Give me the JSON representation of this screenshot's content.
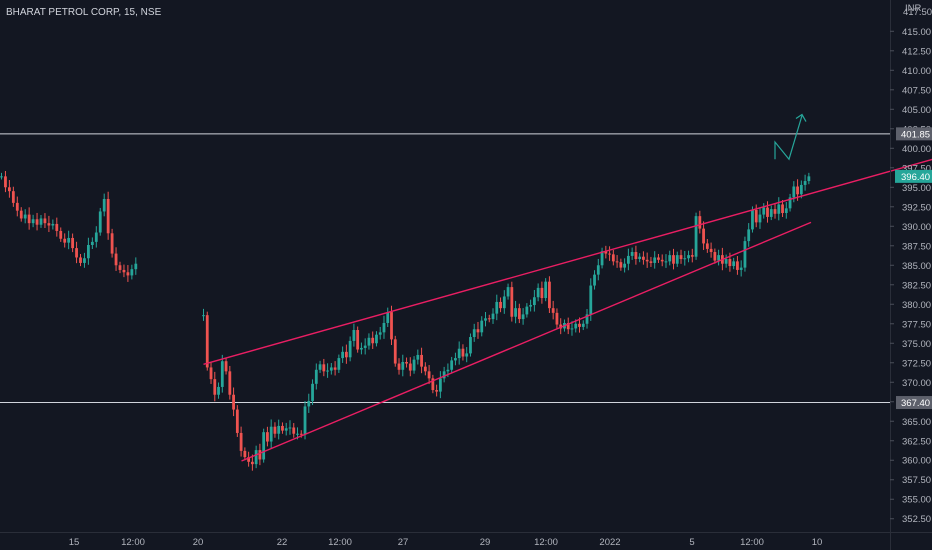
{
  "header": {
    "symbol_title": "BHARAT PETROL CORP, 15, NSE",
    "currency": "INR"
  },
  "colors": {
    "background": "#131722",
    "up": "#26a69a",
    "down": "#ef5350",
    "channel": "#e91e63",
    "hline": "#d1d4dc",
    "arrow": "#26a69a",
    "last_price_bg": "#26a69a"
  },
  "chart_data": {
    "type": "candlestick",
    "title": "BHARAT PETROL CORP, 15, NSE",
    "ylim": [
      350.8,
      418.5
    ],
    "y_ticks": [
      "415.00",
      "412.50",
      "410.00",
      "407.50",
      "405.00",
      "402.50",
      "400.00",
      "397.50",
      "395.00",
      "392.50",
      "390.00",
      "387.50",
      "385.00",
      "382.50",
      "380.00",
      "377.50",
      "375.00",
      "372.50",
      "370.00",
      "367.50",
      "365.00",
      "362.50",
      "360.00",
      "357.50",
      "355.00",
      "352.50"
    ],
    "y_top_partial": "417.50",
    "x_ticks": [
      "15",
      "12:00",
      "20",
      "22",
      "12:00",
      "27",
      "29",
      "12:00",
      "2022",
      "5",
      "12:00",
      "10"
    ],
    "horizontal_lines": [
      {
        "price": 401.85,
        "label": "401.85"
      },
      {
        "price": 367.4,
        "label": "367.40"
      }
    ],
    "last_price": {
      "price": 396.4,
      "label": "396.40"
    },
    "channel": {
      "upper_line": {
        "start_bar": 0,
        "start_price": 372.3,
        "end_bar": 194,
        "end_price": 398.6
      },
      "lower_line": {
        "start_bar": 0,
        "start_price": 359.9,
        "end_bar": 194,
        "end_price": 386.3
      },
      "extended_lower_end_price": 390.5
    },
    "projection": {
      "zigzag_prices": [
        398.6,
        400.8,
        398.6,
        404.2
      ]
    },
    "segments": [
      {
        "name": "pre-gap",
        "points": [
          [
            396.4,
            0
          ],
          [
            395,
            0.2
          ],
          [
            394.5,
            -0.1
          ],
          [
            393,
            0.3
          ],
          [
            392,
            -0.2
          ],
          [
            391,
            0.1
          ],
          [
            391.5,
            0.4
          ],
          [
            390.4,
            -0.3
          ],
          [
            390.9,
            0.2
          ],
          [
            390.2,
            -0.1
          ],
          [
            391,
            0.5
          ],
          [
            390.4,
            0
          ],
          [
            390.1,
            -0.2
          ],
          [
            390.3,
            0.1
          ],
          [
            389.4,
            -0.4
          ],
          [
            388.4,
            -0.3
          ],
          [
            387.9,
            0.2
          ],
          [
            388.5,
            0.4
          ],
          [
            387.2,
            -0.1
          ],
          [
            386,
            -0.3
          ],
          [
            385.3,
            0.2
          ],
          [
            385.9,
            0.3
          ],
          [
            387.6,
            0.5
          ],
          [
            388,
            -0.2
          ],
          [
            389.2,
            0.6
          ],
          [
            391.9,
            0.8
          ],
          [
            393.5,
            0.3
          ],
          [
            389.1,
            -1
          ],
          [
            386.5,
            -0.4
          ],
          [
            385,
            0.2
          ],
          [
            384.4,
            -0.3
          ],
          [
            384.1,
            0.1
          ],
          [
            383.7,
            -0.2
          ],
          [
            384.5,
            0.4
          ],
          [
            385.2,
            0.1
          ]
        ]
      },
      {
        "name": "post-gap",
        "points": [
          [
            378.6,
            0
          ],
          [
            371.9,
            -1.5
          ],
          [
            370.4,
            0.3
          ],
          [
            368.4,
            -0.8
          ],
          [
            369.4,
            0.6
          ],
          [
            372.7,
            0.9
          ],
          [
            371.4,
            -0.3
          ],
          [
            368.4,
            -0.7
          ],
          [
            366.5,
            -0.5
          ],
          [
            363.5,
            -0.6
          ],
          [
            361.2,
            -0.4
          ],
          [
            360.4,
            0.3
          ],
          [
            359.8,
            -0.2
          ],
          [
            359.5,
            0.1
          ],
          [
            361.3,
            0.5
          ],
          [
            360.1,
            -0.3
          ],
          [
            363.6,
            0.8
          ],
          [
            362.4,
            -0.4
          ],
          [
            364.3,
            0.6
          ],
          [
            363.4,
            0.2
          ],
          [
            364.4,
            0.3
          ],
          [
            363.8,
            -0.2
          ],
          [
            364.1,
            0.4
          ],
          [
            364.2,
            0.1
          ],
          [
            363.4,
            -0.3
          ],
          [
            363.4,
            0.3
          ],
          [
            363.3,
            0.1
          ],
          [
            366.9,
            0.6
          ],
          [
            367.6,
            0.4
          ],
          [
            369.8,
            0.5
          ],
          [
            371.6,
            0.4
          ],
          [
            372.3,
            0.2
          ],
          [
            371.4,
            -0.3
          ],
          [
            371.5,
            0.3
          ],
          [
            371.9,
            0.2
          ],
          [
            371.6,
            0.1
          ],
          [
            373.1,
            0.4
          ],
          [
            373.9,
            0.3
          ],
          [
            373.2,
            -0.2
          ],
          [
            375.3,
            0.5
          ],
          [
            376.7,
            0.4
          ],
          [
            374.2,
            -0.5
          ],
          [
            374.4,
            0.2
          ],
          [
            374.7,
            0.3
          ],
          [
            375.7,
            0.4
          ],
          [
            375,
            -0.2
          ],
          [
            376.1,
            0.3
          ],
          [
            376.4,
            0.2
          ],
          [
            377.6,
            0.4
          ],
          [
            379,
            0.5
          ],
          [
            375.5,
            -0.8
          ],
          [
            372.4,
            -0.5
          ],
          [
            371.6,
            -0.3
          ],
          [
            372.6,
            0.4
          ],
          [
            372.4,
            -0.2
          ],
          [
            371.5,
            0.3
          ],
          [
            372.9,
            0.4
          ],
          [
            373.5,
            0.3
          ],
          [
            372,
            -0.4
          ],
          [
            371.4,
            0.2
          ],
          [
            370.5,
            -0.3
          ],
          [
            369,
            -0.5
          ],
          [
            368.8,
            0.4
          ],
          [
            370.5,
            0.5
          ],
          [
            371.4,
            0.3
          ],
          [
            371.6,
            0.2
          ],
          [
            372.8,
            0.4
          ],
          [
            373.1,
            0.3
          ],
          [
            374.3,
            0.4
          ],
          [
            373.3,
            -0.3
          ],
          [
            373.7,
            0.2
          ],
          [
            375.8,
            0.5
          ],
          [
            376.8,
            0.4
          ],
          [
            376.4,
            -0.2
          ],
          [
            377.9,
            0.5
          ],
          [
            378.2,
            0.3
          ],
          [
            378.1,
            0.2
          ],
          [
            378.8,
            0.4
          ],
          [
            380.3,
            0.5
          ],
          [
            379.5,
            -0.3
          ],
          [
            381,
            0.4
          ],
          [
            382.2,
            0.5
          ],
          [
            378.4,
            -0.6
          ],
          [
            379.5,
            0.3
          ],
          [
            378.1,
            -0.3
          ],
          [
            378.7,
            0.4
          ],
          [
            379.7,
            0.3
          ],
          [
            379.9,
            0.2
          ],
          [
            380.9,
            0.4
          ],
          [
            382.1,
            0.5
          ],
          [
            380.8,
            -0.3
          ],
          [
            382.9,
            0.6
          ],
          [
            379.5,
            -0.8
          ],
          [
            378.9,
            -0.3
          ],
          [
            377.4,
            -0.4
          ],
          [
            376.9,
            0.2
          ],
          [
            377.6,
            0.3
          ],
          [
            376.8,
            -0.2
          ],
          [
            376.9,
            0.2
          ],
          [
            377.5,
            0.3
          ],
          [
            377.1,
            -0.2
          ],
          [
            377.5,
            0.3
          ],
          [
            378.7,
            0.5
          ],
          [
            382.4,
            0.8
          ],
          [
            383.8,
            0.6
          ],
          [
            385,
            0.5
          ],
          [
            386.8,
            0.6
          ],
          [
            386.5,
            -0.3
          ],
          [
            386.4,
            0.3
          ],
          [
            385.5,
            -0.4
          ],
          [
            385.4,
            0.2
          ],
          [
            384.7,
            -0.3
          ],
          [
            385.2,
            0.3
          ],
          [
            386.2,
            0.4
          ],
          [
            386.7,
            0.5
          ],
          [
            385.8,
            -0.3
          ],
          [
            386.1,
            0.2
          ],
          [
            385.7,
            -0.2
          ],
          [
            385.5,
            0.3
          ],
          [
            385.3,
            -0.2
          ],
          [
            386,
            0.3
          ],
          [
            385.7,
            0.2
          ],
          [
            385.5,
            -0.2
          ],
          [
            385.5,
            0.2
          ],
          [
            386.3,
            0.3
          ],
          [
            385.2,
            -0.3
          ],
          [
            386.3,
            0.3
          ],
          [
            385.8,
            -0.2
          ],
          [
            385.9,
            0.2
          ],
          [
            386.3,
            0.3
          ],
          [
            386.1,
            -0.2
          ],
          [
            391.3,
            0.9
          ],
          [
            389.7,
            -0.5
          ],
          [
            387.8,
            -0.4
          ],
          [
            387.1,
            0.3
          ],
          [
            386.7,
            -0.3
          ],
          [
            385.6,
            0.3
          ],
          [
            386.3,
            0.3
          ],
          [
            385.2,
            -0.3
          ],
          [
            385.8,
            0.3
          ],
          [
            384.9,
            -0.3
          ],
          [
            385.5,
            0.3
          ],
          [
            384.4,
            -0.4
          ],
          [
            384.7,
            0.3
          ],
          [
            388.1,
            0.6
          ],
          [
            389.6,
            0.4
          ],
          [
            392.1,
            0.5
          ],
          [
            390.5,
            -0.4
          ],
          [
            391.5,
            0.3
          ],
          [
            392.4,
            0.4
          ],
          [
            391.2,
            -0.3
          ],
          [
            392.2,
            0.4
          ],
          [
            391.6,
            0.3
          ],
          [
            392.8,
            0.5
          ],
          [
            391.7,
            -0.3
          ],
          [
            392.3,
            0.3
          ],
          [
            393.7,
            0.5
          ],
          [
            395.1,
            0.4
          ],
          [
            394.1,
            -0.3
          ],
          [
            395.3,
            0.4
          ],
          [
            395.8,
            0.5
          ],
          [
            396.4,
            0.3
          ]
        ]
      }
    ]
  }
}
